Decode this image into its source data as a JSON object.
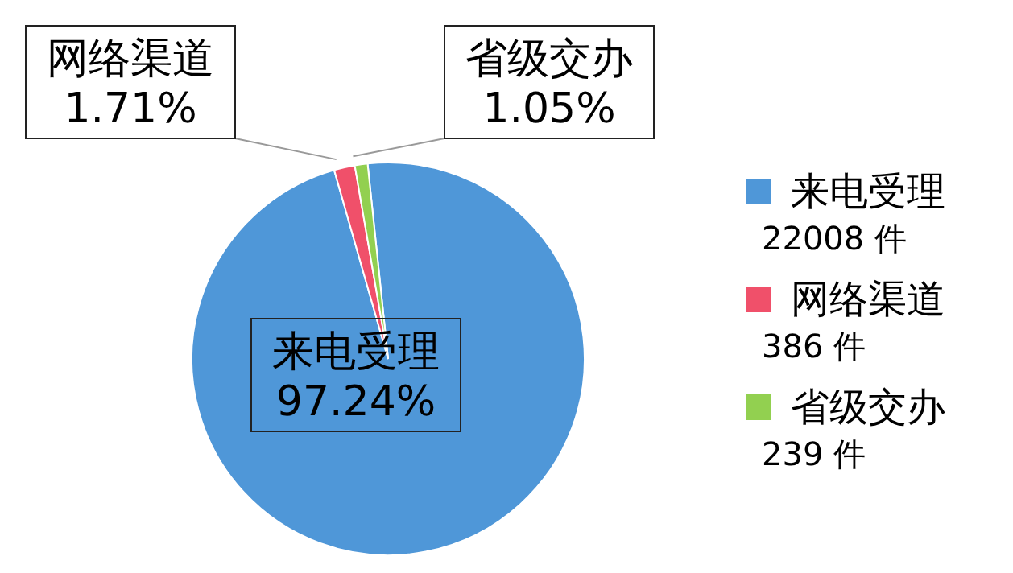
{
  "chart_data": {
    "type": "pie",
    "categories": [
      "来电受理",
      "网络渠道",
      "省级交办"
    ],
    "values": [
      97.24,
      1.71,
      1.05
    ],
    "colors": [
      "#4f97d8",
      "#f0506a",
      "#92d050"
    ],
    "value_labels": [
      "97.24%",
      "1.71%",
      "1.05%"
    ],
    "annotations": [
      "22008 件",
      "386 件",
      "239 件"
    ],
    "legend": "right"
  }
}
